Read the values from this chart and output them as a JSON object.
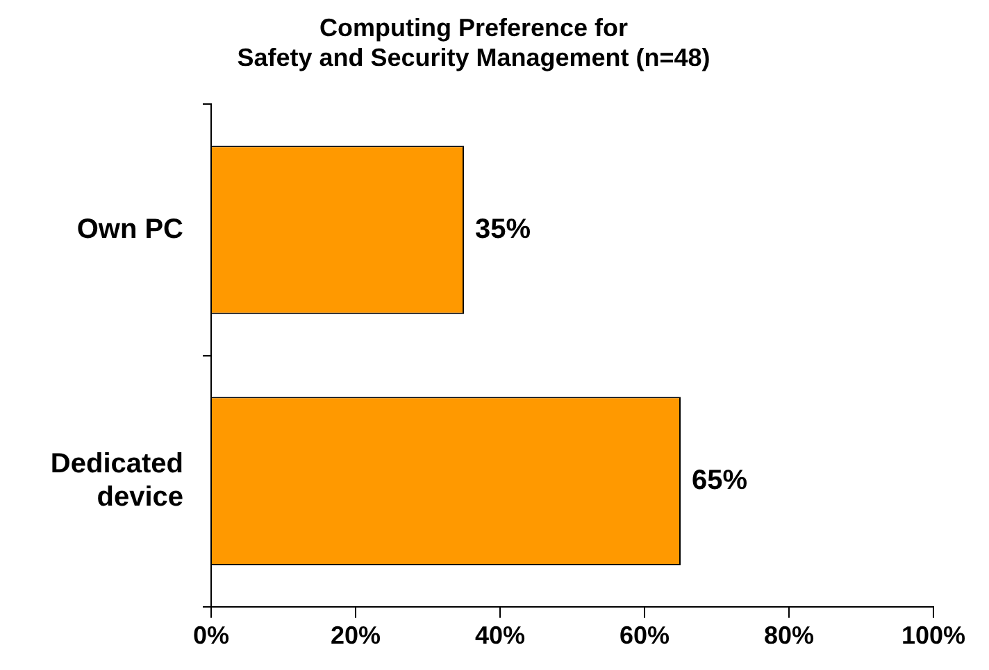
{
  "chart_data": {
    "type": "bar",
    "orientation": "horizontal",
    "title": "Computing Preference for\nSafety and Security Management (n=48)",
    "categories": [
      "Own PC",
      "Dedicated device"
    ],
    "values": [
      35,
      65
    ],
    "value_labels": [
      "35%",
      "65%"
    ],
    "color": "#ff9900",
    "xlim": [
      0,
      100
    ],
    "xticks": [
      {
        "value": 0,
        "label": "0%"
      },
      {
        "value": 20,
        "label": "20%"
      },
      {
        "value": 40,
        "label": "40%"
      },
      {
        "value": 60,
        "label": "60%"
      },
      {
        "value": 80,
        "label": "80%"
      },
      {
        "value": 100,
        "label": "100%"
      }
    ]
  }
}
